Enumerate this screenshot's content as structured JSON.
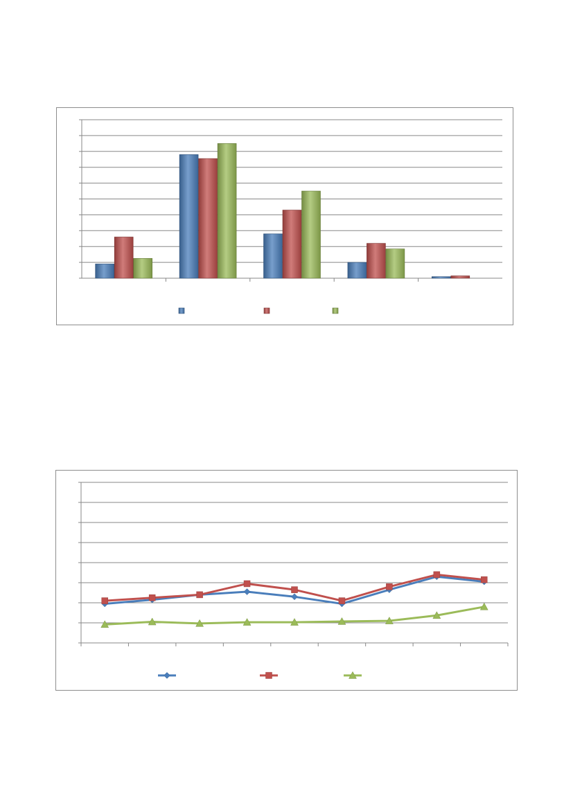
{
  "chart_data": [
    {
      "type": "bar",
      "title": "",
      "xlabel": "",
      "ylabel": "",
      "categories": [
        "",
        "",
        "",
        "",
        ""
      ],
      "ylim": [
        0,
        10
      ],
      "y_gridlines": 10,
      "grid": true,
      "legend_position": "bottom",
      "series": [
        {
          "color": "#4a7ebb",
          "values": [
            0.9,
            7.8,
            2.8,
            1.0,
            0.1
          ]
        },
        {
          "color": "#c0504d",
          "values": [
            2.6,
            7.55,
            4.3,
            2.2,
            0.15
          ]
        },
        {
          "color": "#9bbb59",
          "values": [
            1.25,
            8.5,
            5.5,
            1.85,
            0.0
          ]
        }
      ]
    },
    {
      "type": "line",
      "title": "",
      "xlabel": "",
      "ylabel": "",
      "categories": [
        "",
        "",
        "",
        "",
        "",
        "",
        "",
        "",
        ""
      ],
      "ylim": [
        0,
        8
      ],
      "y_gridlines": 8,
      "grid": true,
      "legend_position": "bottom",
      "series": [
        {
          "color": "#4a7ebb",
          "marker": "diamond",
          "values": [
            1.95,
            2.15,
            2.4,
            2.55,
            2.3,
            1.95,
            2.65,
            3.3,
            3.05
          ]
        },
        {
          "color": "#c0504d",
          "marker": "square",
          "values": [
            2.1,
            2.25,
            2.4,
            2.95,
            2.65,
            2.1,
            2.8,
            3.4,
            3.15
          ]
        },
        {
          "color": "#9bbb59",
          "marker": "triangle",
          "values": [
            0.92,
            1.05,
            0.97,
            1.03,
            1.03,
            1.07,
            1.1,
            1.37,
            1.8
          ]
        }
      ]
    }
  ]
}
